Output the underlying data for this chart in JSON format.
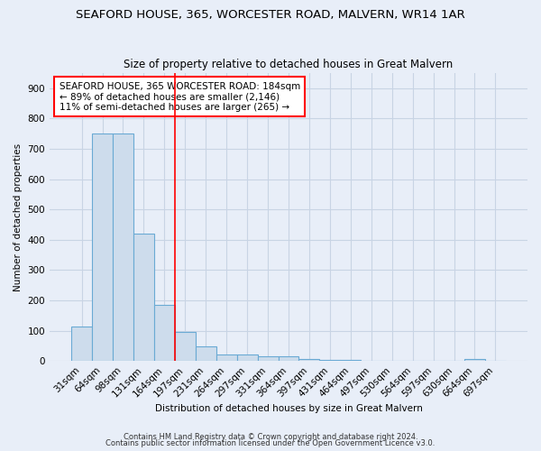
{
  "title": "SEAFORD HOUSE, 365, WORCESTER ROAD, MALVERN, WR14 1AR",
  "subtitle": "Size of property relative to detached houses in Great Malvern",
  "xlabel": "Distribution of detached houses by size in Great Malvern",
  "ylabel": "Number of detached properties",
  "bar_labels": [
    "31sqm",
    "64sqm",
    "98sqm",
    "131sqm",
    "164sqm",
    "197sqm",
    "231sqm",
    "264sqm",
    "297sqm",
    "331sqm",
    "364sqm",
    "397sqm",
    "431sqm",
    "464sqm",
    "497sqm",
    "530sqm",
    "564sqm",
    "597sqm",
    "630sqm",
    "664sqm",
    "697sqm"
  ],
  "bar_values": [
    113,
    750,
    750,
    420,
    185,
    95,
    47,
    22,
    22,
    17,
    17,
    8,
    3,
    3,
    0,
    0,
    0,
    0,
    0,
    8,
    0
  ],
  "bar_color": "#cddcec",
  "bar_edge_color": "#6aaad4",
  "grid_color": "#c8d4e4",
  "bg_color": "#e8eef8",
  "red_line_x": 4.5,
  "annotation_text": "SEAFORD HOUSE, 365 WORCESTER ROAD: 184sqm\n← 89% of detached houses are smaller (2,146)\n11% of semi-detached houses are larger (265) →",
  "annotation_box_color": "white",
  "annotation_box_edge": "red",
  "footer_line1": "Contains HM Land Registry data © Crown copyright and database right 2024.",
  "footer_line2": "Contains public sector information licensed under the Open Government Licence v3.0.",
  "ylim": [
    0,
    950
  ],
  "yticks": [
    0,
    100,
    200,
    300,
    400,
    500,
    600,
    700,
    800,
    900
  ],
  "title_fontsize": 9.5,
  "subtitle_fontsize": 8.5,
  "tick_fontsize": 7.5,
  "label_fontsize": 7.5,
  "annot_fontsize": 7.5,
  "footer_fontsize": 6
}
